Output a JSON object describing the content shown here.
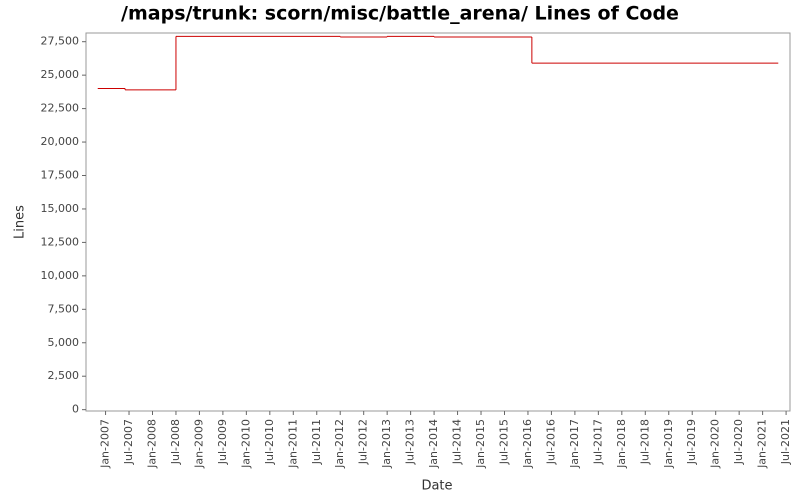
{
  "chart_data": {
    "type": "step",
    "title": "/maps/trunk: scorn/misc/battle_arena/ Lines of Code",
    "x_label": "Date",
    "y_label": "Lines",
    "x": [
      "2006-11",
      "2007-06",
      "2008-07",
      "2012-01",
      "2013-01",
      "2014-01",
      "2016-02",
      "2021-05"
    ],
    "series": [
      {
        "name": "Lines",
        "color": "#cc0000",
        "values": [
          24000,
          23900,
          27900,
          27850,
          27900,
          27850,
          25900,
          25900
        ]
      }
    ],
    "xlim": [
      "2006-08",
      "2021-08"
    ],
    "xticks": [
      {
        "value": "2007-01",
        "label": "Jan-2007"
      },
      {
        "value": "2007-07",
        "label": "Jul-2007"
      },
      {
        "value": "2008-01",
        "label": "Jan-2008"
      },
      {
        "value": "2008-07",
        "label": "Jul-2008"
      },
      {
        "value": "2009-01",
        "label": "Jan-2009"
      },
      {
        "value": "2009-07",
        "label": "Jul-2009"
      },
      {
        "value": "2010-01",
        "label": "Jan-2010"
      },
      {
        "value": "2010-07",
        "label": "Jul-2010"
      },
      {
        "value": "2011-01",
        "label": "Jan-2011"
      },
      {
        "value": "2011-07",
        "label": "Jul-2011"
      },
      {
        "value": "2012-01",
        "label": "Jan-2012"
      },
      {
        "value": "2012-07",
        "label": "Jul-2012"
      },
      {
        "value": "2013-01",
        "label": "Jan-2013"
      },
      {
        "value": "2013-07",
        "label": "Jul-2013"
      },
      {
        "value": "2014-01",
        "label": "Jan-2014"
      },
      {
        "value": "2014-07",
        "label": "Jul-2014"
      },
      {
        "value": "2015-01",
        "label": "Jan-2015"
      },
      {
        "value": "2015-07",
        "label": "Jul-2015"
      },
      {
        "value": "2016-01",
        "label": "Jan-2016"
      },
      {
        "value": "2016-07",
        "label": "Jul-2016"
      },
      {
        "value": "2017-01",
        "label": "Jan-2017"
      },
      {
        "value": "2017-07",
        "label": "Jul-2017"
      },
      {
        "value": "2018-01",
        "label": "Jan-2018"
      },
      {
        "value": "2018-07",
        "label": "Jul-2018"
      },
      {
        "value": "2019-01",
        "label": "Jan-2019"
      },
      {
        "value": "2019-07",
        "label": "Jul-2019"
      },
      {
        "value": "2020-01",
        "label": "Jan-2020"
      },
      {
        "value": "2020-07",
        "label": "Jul-2020"
      },
      {
        "value": "2021-01",
        "label": "Jan-2021"
      },
      {
        "value": "2021-07",
        "label": "Jul-2021"
      }
    ],
    "ylim": [
      -100,
      28150
    ],
    "yticks": [
      0,
      {
        "value": 2500,
        "label": "2,500"
      },
      {
        "value": 5000,
        "label": "5,000"
      },
      {
        "value": 7500,
        "label": "7,500"
      },
      {
        "value": 10000,
        "label": "10,000"
      },
      {
        "value": 12500,
        "label": "12,500"
      },
      {
        "value": 15000,
        "label": "15,000"
      },
      {
        "value": 17500,
        "label": "17,500"
      },
      {
        "value": 20000,
        "label": "20,000"
      },
      {
        "value": 22500,
        "label": "22,500"
      },
      {
        "value": 25000,
        "label": "25,000"
      },
      {
        "value": 27500,
        "label": "27,500"
      }
    ],
    "grid": false
  }
}
